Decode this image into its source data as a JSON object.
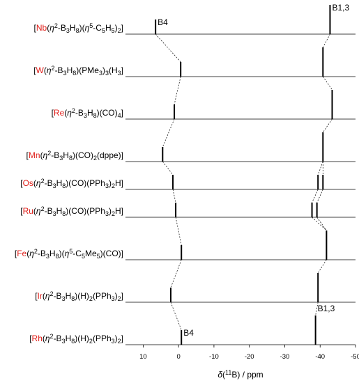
{
  "chart_data": {
    "type": "stick",
    "xlabel": "δ(11B) / ppm",
    "xlim": [
      15,
      -50
    ],
    "xticks": [
      10,
      0,
      -10,
      -20,
      -30,
      -40,
      -50
    ],
    "color": "#000000",
    "metal_color": "#e0201b",
    "compounds": [
      {
        "name": "[Nb(η2-B3H8)(η5-C5H5)2]",
        "peaks": [
          {
            "shift": 6.5,
            "intensity": 1,
            "label": "B4"
          },
          {
            "shift": -42.8,
            "intensity": 2,
            "label": "B1,3"
          }
        ]
      },
      {
        "name": "[W(η2-B3H8)(PMe3)3(H3]",
        "peaks": [
          {
            "shift": -0.6,
            "intensity": 1
          },
          {
            "shift": -40.8,
            "intensity": 2
          }
        ]
      },
      {
        "name": "[Re(η2-B3H8)(CO)4]",
        "peaks": [
          {
            "shift": 1.2,
            "intensity": 1
          },
          {
            "shift": -43.4,
            "intensity": 2
          }
        ]
      },
      {
        "name": "[Mn(η2-B3H8)(CO)2(dppe)]",
        "peaks": [
          {
            "shift": 4.5,
            "intensity": 1
          },
          {
            "shift": -40.8,
            "intensity": 2
          }
        ]
      },
      {
        "name": "[Os(η2-B3H8)(CO)(PPh3)2H]",
        "peaks": [
          {
            "shift": 1.6,
            "intensity": 1
          },
          {
            "shift": -39.4,
            "intensity": 1
          },
          {
            "shift": -40.8,
            "intensity": 1
          }
        ]
      },
      {
        "name": "[Ru(η2-B3H8)(CO)(PPh3)2H]",
        "peaks": [
          {
            "shift": 0.8,
            "intensity": 1
          },
          {
            "shift": -37.7,
            "intensity": 1
          },
          {
            "shift": -39.1,
            "intensity": 1
          }
        ]
      },
      {
        "name": "[Fe(η2-B3H8)(η5-C5Me5)(CO)]",
        "peaks": [
          {
            "shift": -0.8,
            "intensity": 1
          },
          {
            "shift": -41.8,
            "intensity": 2
          }
        ]
      },
      {
        "name": "[Ir(η2-B3H8)(H)2(PPh3)2]",
        "peaks": [
          {
            "shift": 2.2,
            "intensity": 1
          },
          {
            "shift": -39.4,
            "intensity": 2
          }
        ]
      },
      {
        "name": "[Rh(η2-B3H8)(H)2(PPh3)2]",
        "peaks": [
          {
            "shift": -0.8,
            "intensity": 1,
            "label": "B4"
          },
          {
            "shift": -38.7,
            "intensity": 2,
            "label": "B1,3"
          }
        ]
      }
    ]
  }
}
